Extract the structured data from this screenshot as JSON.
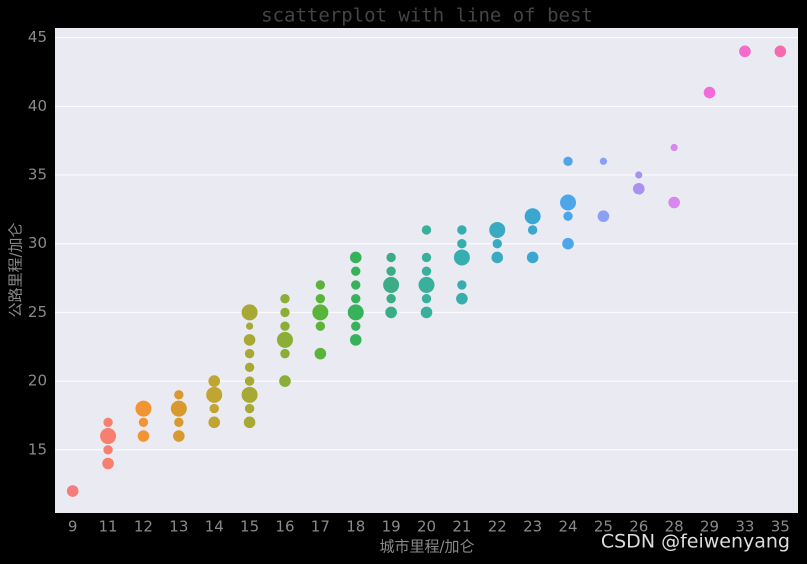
{
  "chart_data": {
    "type": "scatter",
    "title": "scatterplot with line of best",
    "x_label": "城市里程/加仑",
    "y_label": "公路里程/加仑",
    "categories": [
      9,
      11,
      12,
      13,
      14,
      15,
      16,
      17,
      18,
      19,
      20,
      21,
      22,
      23,
      24,
      25,
      26,
      28,
      29,
      33,
      35
    ],
    "colors": [
      "#f47c7c",
      "#f77f6f",
      "#f39433",
      "#d89a2f",
      "#c0a532",
      "#a8a834",
      "#8bae36",
      "#5bb43a",
      "#36b35a",
      "#3aad86",
      "#38b09b",
      "#37aeae",
      "#3aaac0",
      "#39a7d0",
      "#4da6ea",
      "#8a9ff5",
      "#a991f2",
      "#d687f0",
      "#f36adb",
      "#f56bcc",
      "#f46bb0"
    ],
    "x": [
      9,
      11,
      11,
      11,
      11,
      12,
      12,
      12,
      13,
      13,
      13,
      13,
      14,
      14,
      14,
      14,
      15,
      15,
      15,
      15,
      15,
      15,
      15,
      15,
      15,
      16,
      16,
      16,
      16,
      16,
      16,
      17,
      17,
      17,
      17,
      17,
      18,
      18,
      18,
      18,
      18,
      18,
      18,
      19,
      19,
      19,
      19,
      19,
      20,
      20,
      20,
      20,
      20,
      20,
      21,
      21,
      21,
      21,
      21,
      22,
      22,
      22,
      23,
      23,
      23,
      24,
      24,
      24,
      24,
      25,
      25,
      26,
      26,
      28,
      28,
      29,
      33,
      35
    ],
    "values": [
      12,
      17,
      16,
      15,
      14,
      18,
      17,
      16,
      19,
      18,
      17,
      16,
      20,
      19,
      18,
      17,
      25,
      24,
      23,
      22,
      21,
      20,
      19,
      18,
      17,
      26,
      25,
      24,
      23,
      22,
      20,
      27,
      26,
      25,
      24,
      22,
      29,
      28,
      27,
      26,
      25,
      24,
      23,
      29,
      28,
      27,
      26,
      25,
      31,
      29,
      28,
      27,
      26,
      25,
      31,
      30,
      29,
      27,
      26,
      31,
      30,
      29,
      32,
      31,
      29,
      36,
      33,
      32,
      30,
      36,
      32,
      35,
      34,
      37,
      33,
      41,
      44,
      44
    ],
    "sizes": [
      3,
      2,
      5,
      2,
      3,
      5,
      2,
      3,
      2,
      5,
      2,
      3,
      3,
      5,
      2,
      3,
      5,
      1,
      3,
      2,
      2,
      2,
      5,
      2,
      3,
      2,
      2,
      2,
      5,
      2,
      3,
      2,
      2,
      5,
      2,
      3,
      3,
      2,
      2,
      2,
      5,
      2,
      3,
      2,
      2,
      5,
      2,
      3,
      2,
      2,
      2,
      5,
      2,
      3,
      2,
      2,
      5,
      2,
      3,
      5,
      2,
      3,
      5,
      2,
      3,
      2,
      5,
      2,
      3,
      1,
      3,
      1,
      3,
      1,
      3,
      3,
      3,
      3
    ],
    "ylim": [
      10.4,
      45.7
    ],
    "yticks": [
      15,
      20,
      25,
      30,
      35,
      40,
      45
    ],
    "grid": true,
    "watermark": "CSDN @feiwenyang"
  }
}
